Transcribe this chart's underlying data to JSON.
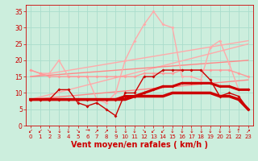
{
  "bg_color": "#cceedd",
  "grid_color": "#aaddcc",
  "xlabel": "Vent moyen/en rafales ( km/h )",
  "xlabel_color": "#cc0000",
  "xlabel_fontsize": 7,
  "tick_color": "#cc0000",
  "xlim": [
    -0.5,
    23.5
  ],
  "ylim": [
    0,
    37
  ],
  "yticks": [
    0,
    5,
    10,
    15,
    20,
    25,
    30,
    35
  ],
  "xticks": [
    0,
    1,
    2,
    3,
    4,
    5,
    6,
    7,
    8,
    9,
    10,
    11,
    12,
    13,
    14,
    15,
    16,
    17,
    18,
    19,
    20,
    21,
    22,
    23
  ],
  "arrow_chars": [
    "↙",
    "↙",
    "↘",
    "↓",
    "↓",
    "↘",
    "→",
    "↗",
    "↗",
    "↓",
    "↓",
    "↓",
    "↘",
    "↙",
    "↙",
    "↓",
    "↓",
    "↓",
    "↓",
    "↓",
    "↓",
    "↓",
    "↑",
    "↗"
  ],
  "series": [
    {
      "label": "line1_dark_thick",
      "x": [
        0,
        1,
        2,
        3,
        4,
        5,
        6,
        7,
        8,
        9,
        10,
        11,
        12,
        13,
        14,
        15,
        16,
        17,
        18,
        19,
        20,
        21,
        22,
        23
      ],
      "y": [
        8,
        8,
        8,
        8,
        8,
        8,
        8,
        8,
        8,
        8,
        9,
        9,
        10,
        11,
        12,
        12,
        13,
        13,
        13,
        13,
        12,
        12,
        11,
        11
      ],
      "color": "#cc0000",
      "lw": 2.2,
      "marker": "D",
      "ms": 2.0,
      "zorder": 6
    },
    {
      "label": "trend1_light",
      "x": [
        0,
        23
      ],
      "y": [
        8,
        25
      ],
      "color": "#ffaaaa",
      "lw": 1.0,
      "marker": null,
      "ms": 0,
      "zorder": 2
    },
    {
      "label": "trend2_light",
      "x": [
        0,
        23
      ],
      "y": [
        15,
        26
      ],
      "color": "#ffaaaa",
      "lw": 1.0,
      "marker": null,
      "ms": 0,
      "zorder": 2
    },
    {
      "label": "trend3_medium",
      "x": [
        0,
        23
      ],
      "y": [
        8,
        14
      ],
      "color": "#ff8888",
      "lw": 1.0,
      "marker": null,
      "ms": 0,
      "zorder": 2
    },
    {
      "label": "trend4_medium",
      "x": [
        0,
        23
      ],
      "y": [
        15,
        20
      ],
      "color": "#ff8888",
      "lw": 1.0,
      "marker": null,
      "ms": 0,
      "zorder": 2
    },
    {
      "label": "line2_pink_wavy",
      "x": [
        0,
        1,
        2,
        3,
        4,
        5,
        6,
        7,
        8,
        9,
        10,
        11,
        12,
        13,
        14,
        15,
        16,
        17,
        18,
        19,
        20,
        21,
        22,
        23
      ],
      "y": [
        17,
        16,
        16,
        20,
        15,
        15,
        15,
        8,
        7,
        10,
        20,
        26,
        31,
        35,
        31,
        30,
        15,
        15,
        14,
        24,
        26,
        19,
        11,
        11
      ],
      "color": "#ffaaaa",
      "lw": 1.0,
      "marker": "D",
      "ms": 2.0,
      "zorder": 3
    },
    {
      "label": "line3_dark_medium",
      "x": [
        0,
        1,
        2,
        3,
        4,
        5,
        6,
        7,
        8,
        9,
        10,
        11,
        12,
        13,
        14,
        15,
        16,
        17,
        18,
        19,
        20,
        21,
        22,
        23
      ],
      "y": [
        8,
        8,
        8,
        11,
        11,
        7,
        6,
        7,
        5,
        3,
        10,
        10,
        15,
        15,
        17,
        17,
        17,
        17,
        17,
        14,
        9,
        10,
        9,
        5
      ],
      "color": "#cc0000",
      "lw": 1.0,
      "marker": "D",
      "ms": 2.0,
      "zorder": 4
    },
    {
      "label": "line4_medium_pink",
      "x": [
        0,
        1,
        2,
        3,
        4,
        5,
        6,
        7,
        8,
        9,
        10,
        11,
        12,
        13,
        14,
        15,
        16,
        17,
        18,
        19,
        20,
        21,
        22,
        23
      ],
      "y": [
        17,
        16,
        15,
        15,
        15,
        15,
        15,
        15,
        15,
        15,
        15,
        15,
        16,
        16,
        16,
        16,
        17,
        17,
        17,
        17,
        17,
        17,
        16,
        15
      ],
      "color": "#ff9999",
      "lw": 1.0,
      "marker": "D",
      "ms": 2.0,
      "zorder": 3
    },
    {
      "label": "line5_dark_flat",
      "x": [
        0,
        1,
        2,
        3,
        4,
        5,
        6,
        7,
        8,
        9,
        10,
        11,
        12,
        13,
        14,
        15,
        16,
        17,
        18,
        19,
        20,
        21,
        22,
        23
      ],
      "y": [
        8,
        8,
        8,
        8,
        8,
        8,
        8,
        8,
        8,
        8,
        8,
        9,
        9,
        9,
        9,
        10,
        10,
        10,
        10,
        10,
        9,
        9,
        8,
        5
      ],
      "color": "#cc0000",
      "lw": 2.5,
      "marker": null,
      "ms": 0,
      "zorder": 5
    }
  ]
}
